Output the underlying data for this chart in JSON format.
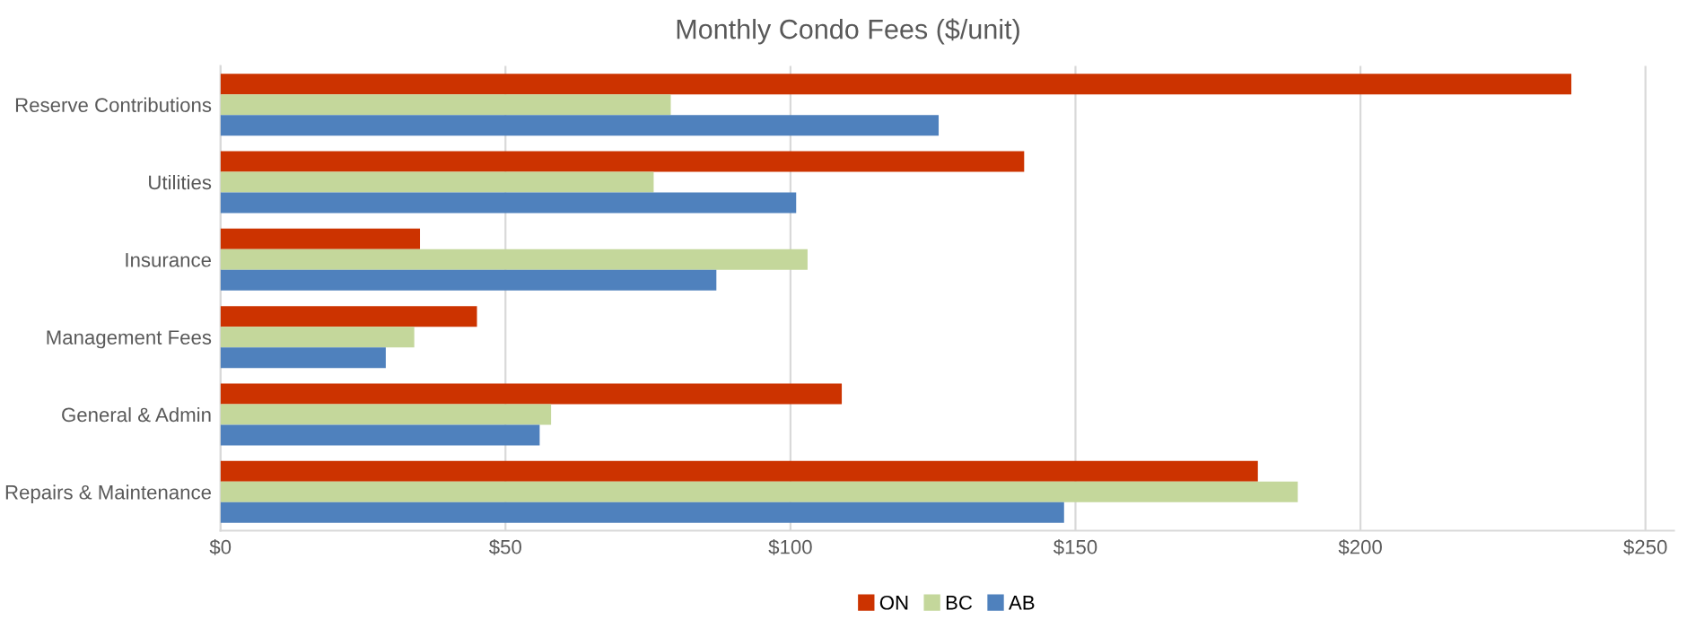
{
  "chart_data": {
    "type": "bar",
    "orientation": "horizontal",
    "title": "Monthly Condo Fees ($/unit)",
    "categories": [
      "Reserve Contributions",
      "Utilities",
      "Insurance",
      "Management Fees",
      "General & Admin",
      "Repairs & Maintenance"
    ],
    "series": [
      {
        "name": "ON",
        "color": "#cc3300",
        "values": [
          237,
          141,
          35,
          45,
          109,
          182
        ]
      },
      {
        "name": "BC",
        "color": "#c4d79b",
        "values": [
          79,
          76,
          103,
          34,
          58,
          189
        ]
      },
      {
        "name": "AB",
        "color": "#4f81bd",
        "values": [
          126,
          101,
          87,
          29,
          56,
          148
        ]
      }
    ],
    "xlim": [
      0,
      255
    ],
    "xticks": [
      {
        "value": 0,
        "label": "$0"
      },
      {
        "value": 50,
        "label": "$50"
      },
      {
        "value": 100,
        "label": "$100"
      },
      {
        "value": 150,
        "label": "$150"
      },
      {
        "value": 200,
        "label": "$200"
      },
      {
        "value": 250,
        "label": "$250"
      }
    ],
    "grid": "x",
    "legend": "bottom"
  }
}
